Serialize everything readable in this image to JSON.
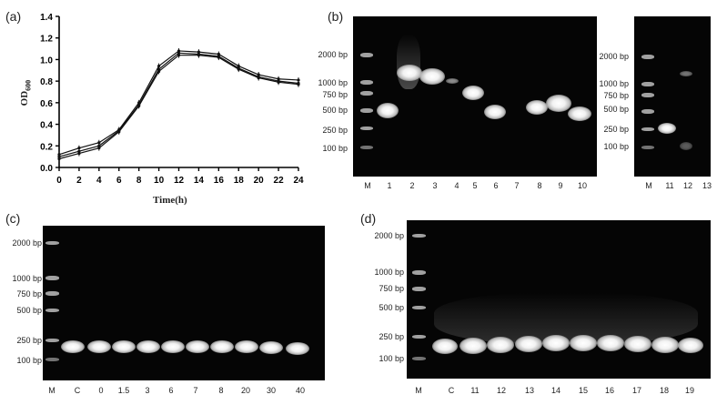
{
  "panels": {
    "a": {
      "label": "(a)",
      "chart_data": {
        "type": "line",
        "xlabel": "Time(h)",
        "ylabel_main": "OD",
        "ylabel_sub": "600",
        "x": [
          0,
          2,
          4,
          6,
          8,
          10,
          12,
          14,
          16,
          18,
          20,
          22,
          24
        ],
        "xlim": [
          0,
          24
        ],
        "ylim": [
          0,
          1.4
        ],
        "xticks": [
          "0",
          "2",
          "4",
          "6",
          "8",
          "10",
          "12",
          "14",
          "16",
          "18",
          "20",
          "22",
          "24"
        ],
        "yticks": [
          "0.0",
          "0.2",
          "0.4",
          "0.6",
          "0.8",
          "1.0",
          "1.2",
          "1.4"
        ],
        "series": [
          {
            "values": [
              0.12,
              0.18,
              0.23,
              0.35,
              0.6,
              0.94,
              1.08,
              1.07,
              1.05,
              0.94,
              0.86,
              0.82,
              0.81
            ]
          },
          {
            "values": [
              0.1,
              0.15,
              0.2,
              0.34,
              0.58,
              0.91,
              1.06,
              1.05,
              1.03,
              0.92,
              0.84,
              0.8,
              0.78
            ]
          },
          {
            "values": [
              0.08,
              0.13,
              0.18,
              0.33,
              0.57,
              0.89,
              1.04,
              1.04,
              1.02,
              0.91,
              0.83,
              0.79,
              0.77
            ]
          }
        ]
      }
    },
    "b": {
      "label": "(b)",
      "bp_labels": [
        "2000 bp",
        "1000 bp",
        "750 bp",
        "500 bp",
        "250 bp",
        "100 bp"
      ],
      "lanes_left": [
        "M",
        "1",
        "2",
        "3",
        "4",
        "5",
        "6",
        "7",
        "8",
        "9",
        "10"
      ],
      "bp_labels_right": [
        "2000 bp",
        "1000 bp",
        "750 bp",
        "500 bp",
        "250 bp",
        "100 bp"
      ],
      "lanes_right": [
        "M",
        "11",
        "12",
        "13"
      ]
    },
    "c": {
      "label": "(c)",
      "bp_labels": [
        "2000 bp",
        "1000 bp",
        "750 bp",
        "500 bp",
        "250 bp",
        "100 bp"
      ],
      "lanes": [
        "M",
        "C",
        "0",
        "1.5",
        "3",
        "6",
        "7",
        "8",
        "20",
        "30",
        "40"
      ]
    },
    "d": {
      "label": "(d)",
      "bp_labels": [
        "2000 bp",
        "1000 bp",
        "750 bp",
        "500 bp",
        "250 bp",
        "100 bp"
      ],
      "lanes": [
        "M",
        "C",
        "11",
        "12",
        "13",
        "14",
        "15",
        "16",
        "17",
        "18",
        "19"
      ]
    }
  }
}
